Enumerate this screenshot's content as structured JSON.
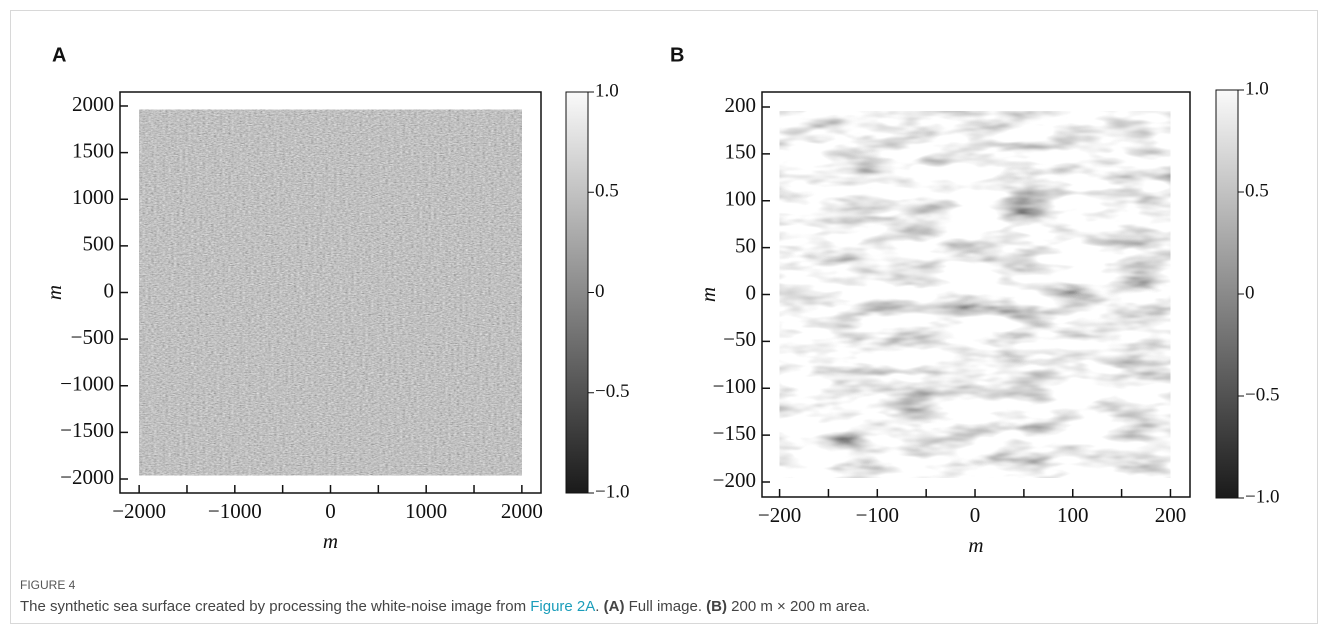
{
  "chart_data": [
    {
      "type": "heatmap",
      "panel_label": "A",
      "xlabel": "m",
      "ylabel": "m",
      "colormap": "gray",
      "xlim": [
        -2200,
        2200
      ],
      "ylim": [
        -2150,
        2150
      ],
      "xticks": [
        {
          "value": -2000,
          "label": "−2000"
        },
        {
          "value": -1000,
          "label": "−1000"
        },
        0,
        1000,
        2000
      ],
      "xminor_ticks": [
        -1500,
        -500,
        500,
        1500
      ],
      "yticks": [
        {
          "value": -2000,
          "label": "−2000"
        },
        {
          "value": -1500,
          "label": "−1500"
        },
        {
          "value": -1000,
          "label": "−1000"
        },
        {
          "value": -500,
          "label": "−500"
        },
        0,
        500,
        1000,
        1500,
        2000
      ],
      "clim": [
        -1,
        1
      ],
      "cticks": [
        {
          "value": -1,
          "label": "−1.0"
        },
        {
          "value": -0.5,
          "label": "−0.5"
        },
        0,
        0.5,
        {
          "value": 1,
          "label": "1.0"
        }
      ]
    },
    {
      "type": "heatmap",
      "panel_label": "B",
      "xlabel": "m",
      "ylabel": "m",
      "colormap": "gray",
      "xlim": [
        -218,
        220
      ],
      "ylim": [
        -216,
        216
      ],
      "xticks": [
        {
          "value": -200,
          "label": "−200"
        },
        {
          "value": -100,
          "label": "−100"
        },
        0,
        100,
        200
      ],
      "xminor_ticks": [
        -150,
        -50,
        50,
        150
      ],
      "yticks": [
        {
          "value": -200,
          "label": "−200"
        },
        {
          "value": -150,
          "label": "−150"
        },
        {
          "value": -100,
          "label": "−100"
        },
        {
          "value": -50,
          "label": "−50"
        },
        0,
        50,
        100,
        150,
        200
      ],
      "clim": [
        -1,
        1
      ],
      "cticks": [
        {
          "value": -1,
          "label": "−1.0"
        },
        {
          "value": -0.5,
          "label": "−0.5"
        },
        0,
        0.5,
        {
          "value": 1,
          "label": "1.0"
        }
      ]
    }
  ],
  "caption": {
    "label": "FIGURE 4",
    "parts": [
      "The synthetic sea surface created by processing the white-noise image from ",
      "Figure 2A",
      ". ",
      "(A)",
      " Full image. ",
      "(B)",
      " 200 m × 200 m area."
    ]
  }
}
